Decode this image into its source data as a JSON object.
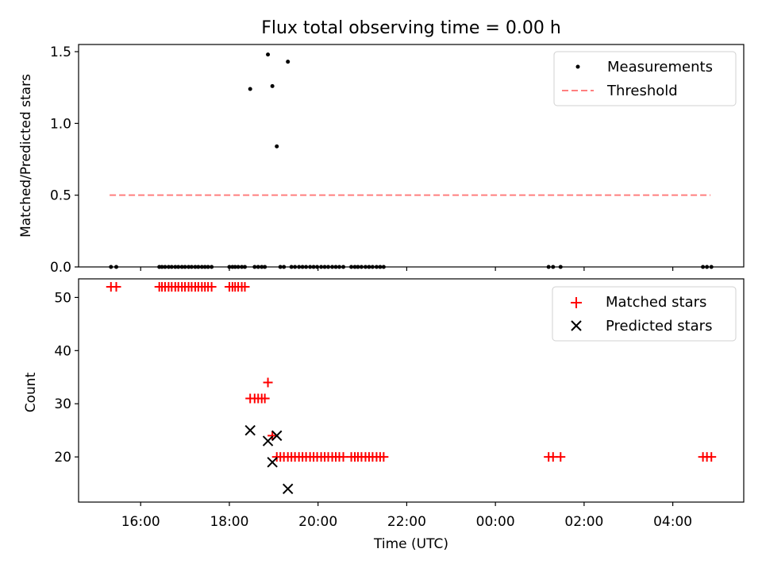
{
  "title": "Flux total observing time = 0.00 h",
  "chart_data": [
    {
      "type": "scatter",
      "ylabel": "Matched/Predicted stars",
      "xlim_hours": [
        14.6,
        29.6
      ],
      "ylim": [
        0,
        1.55
      ],
      "yticks": [
        0.0,
        0.5,
        1.0,
        1.5
      ],
      "ytick_labels": [
        "0.0",
        "0.5",
        "1.0",
        "1.5"
      ],
      "legend_position": "top-right",
      "series": [
        {
          "name": "Measurements",
          "marker": "dot",
          "color": "#000000",
          "x": [
            15.33,
            15.45,
            16.42,
            16.48,
            16.55,
            16.63,
            16.7,
            16.78,
            16.85,
            16.93,
            17.0,
            17.08,
            17.15,
            17.23,
            17.3,
            17.38,
            17.45,
            17.52,
            17.6,
            18.0,
            18.07,
            18.13,
            18.2,
            18.28,
            18.35,
            18.47,
            18.57,
            18.65,
            18.73,
            18.8,
            18.87,
            18.97,
            19.07,
            19.15,
            19.23,
            19.32,
            19.4,
            19.48,
            19.57,
            19.65,
            19.73,
            19.82,
            19.9,
            19.98,
            20.07,
            20.15,
            20.23,
            20.32,
            20.4,
            20.48,
            20.57,
            20.75,
            20.83,
            20.9,
            20.98,
            21.07,
            21.15,
            21.23,
            21.32,
            21.4,
            21.48,
            25.2,
            25.3,
            25.47,
            28.68,
            28.77,
            28.87
          ],
          "y": [
            0,
            0,
            0,
            0,
            0,
            0,
            0,
            0,
            0,
            0,
            0,
            0,
            0,
            0,
            0,
            0,
            0,
            0,
            0,
            0,
            0,
            0,
            0,
            0,
            0,
            1.24,
            0,
            0,
            0,
            0,
            1.48,
            1.26,
            0.84,
            0,
            0,
            1.43,
            0,
            0,
            0,
            0,
            0,
            0,
            0,
            0,
            0,
            0,
            0,
            0,
            0,
            0,
            0,
            0,
            0,
            0,
            0,
            0,
            0,
            0,
            0,
            0,
            0,
            0,
            0,
            0,
            0,
            0,
            0
          ]
        },
        {
          "name": "Threshold",
          "style": "dashed",
          "color": "#ff7f7f",
          "x": [
            15.3,
            28.85
          ],
          "y": [
            0.5,
            0.5
          ]
        }
      ]
    },
    {
      "type": "scatter",
      "xlabel": "Time (UTC)",
      "ylabel": "Count",
      "xlim_hours": [
        14.6,
        29.6
      ],
      "ylim": [
        11.5,
        53.5
      ],
      "yticks": [
        20,
        30,
        40,
        50
      ],
      "ytick_labels": [
        "20",
        "30",
        "40",
        "50"
      ],
      "xticks_hours": [
        16,
        18,
        20,
        22,
        24,
        26,
        28
      ],
      "xtick_labels": [
        "16:00",
        "18:00",
        "20:00",
        "22:00",
        "00:00",
        "02:00",
        "04:00"
      ],
      "legend_position": "top-right",
      "series": [
        {
          "name": "Matched stars",
          "marker": "plus",
          "color": "#ff0000",
          "x": [
            15.33,
            15.45,
            16.42,
            16.48,
            16.55,
            16.63,
            16.7,
            16.78,
            16.85,
            16.93,
            17.0,
            17.08,
            17.15,
            17.23,
            17.3,
            17.38,
            17.45,
            17.52,
            17.6,
            18.0,
            18.07,
            18.13,
            18.2,
            18.28,
            18.35,
            18.47,
            18.57,
            18.65,
            18.73,
            18.8,
            18.87,
            18.97,
            19.07,
            19.15,
            19.23,
            19.32,
            19.4,
            19.48,
            19.57,
            19.65,
            19.73,
            19.82,
            19.9,
            19.98,
            20.07,
            20.15,
            20.23,
            20.32,
            20.4,
            20.48,
            20.57,
            20.75,
            20.83,
            20.9,
            20.98,
            21.07,
            21.15,
            21.23,
            21.32,
            21.4,
            21.48,
            25.2,
            25.3,
            25.47,
            28.68,
            28.77,
            28.87
          ],
          "y": [
            52,
            52,
            52,
            52,
            52,
            52,
            52,
            52,
            52,
            52,
            52,
            52,
            52,
            52,
            52,
            52,
            52,
            52,
            52,
            52,
            52,
            52,
            52,
            52,
            52,
            31,
            31,
            31,
            31,
            31,
            34,
            24,
            20,
            20,
            20,
            20,
            20,
            20,
            20,
            20,
            20,
            20,
            20,
            20,
            20,
            20,
            20,
            20,
            20,
            20,
            20,
            20,
            20,
            20,
            20,
            20,
            20,
            20,
            20,
            20,
            20,
            20,
            20,
            20,
            20,
            20,
            20
          ]
        },
        {
          "name": "Predicted stars",
          "marker": "x",
          "color": "#000000",
          "x": [
            18.47,
            18.87,
            18.97,
            19.07,
            19.32
          ],
          "y": [
            25,
            23,
            19,
            24,
            14
          ]
        }
      ]
    }
  ]
}
